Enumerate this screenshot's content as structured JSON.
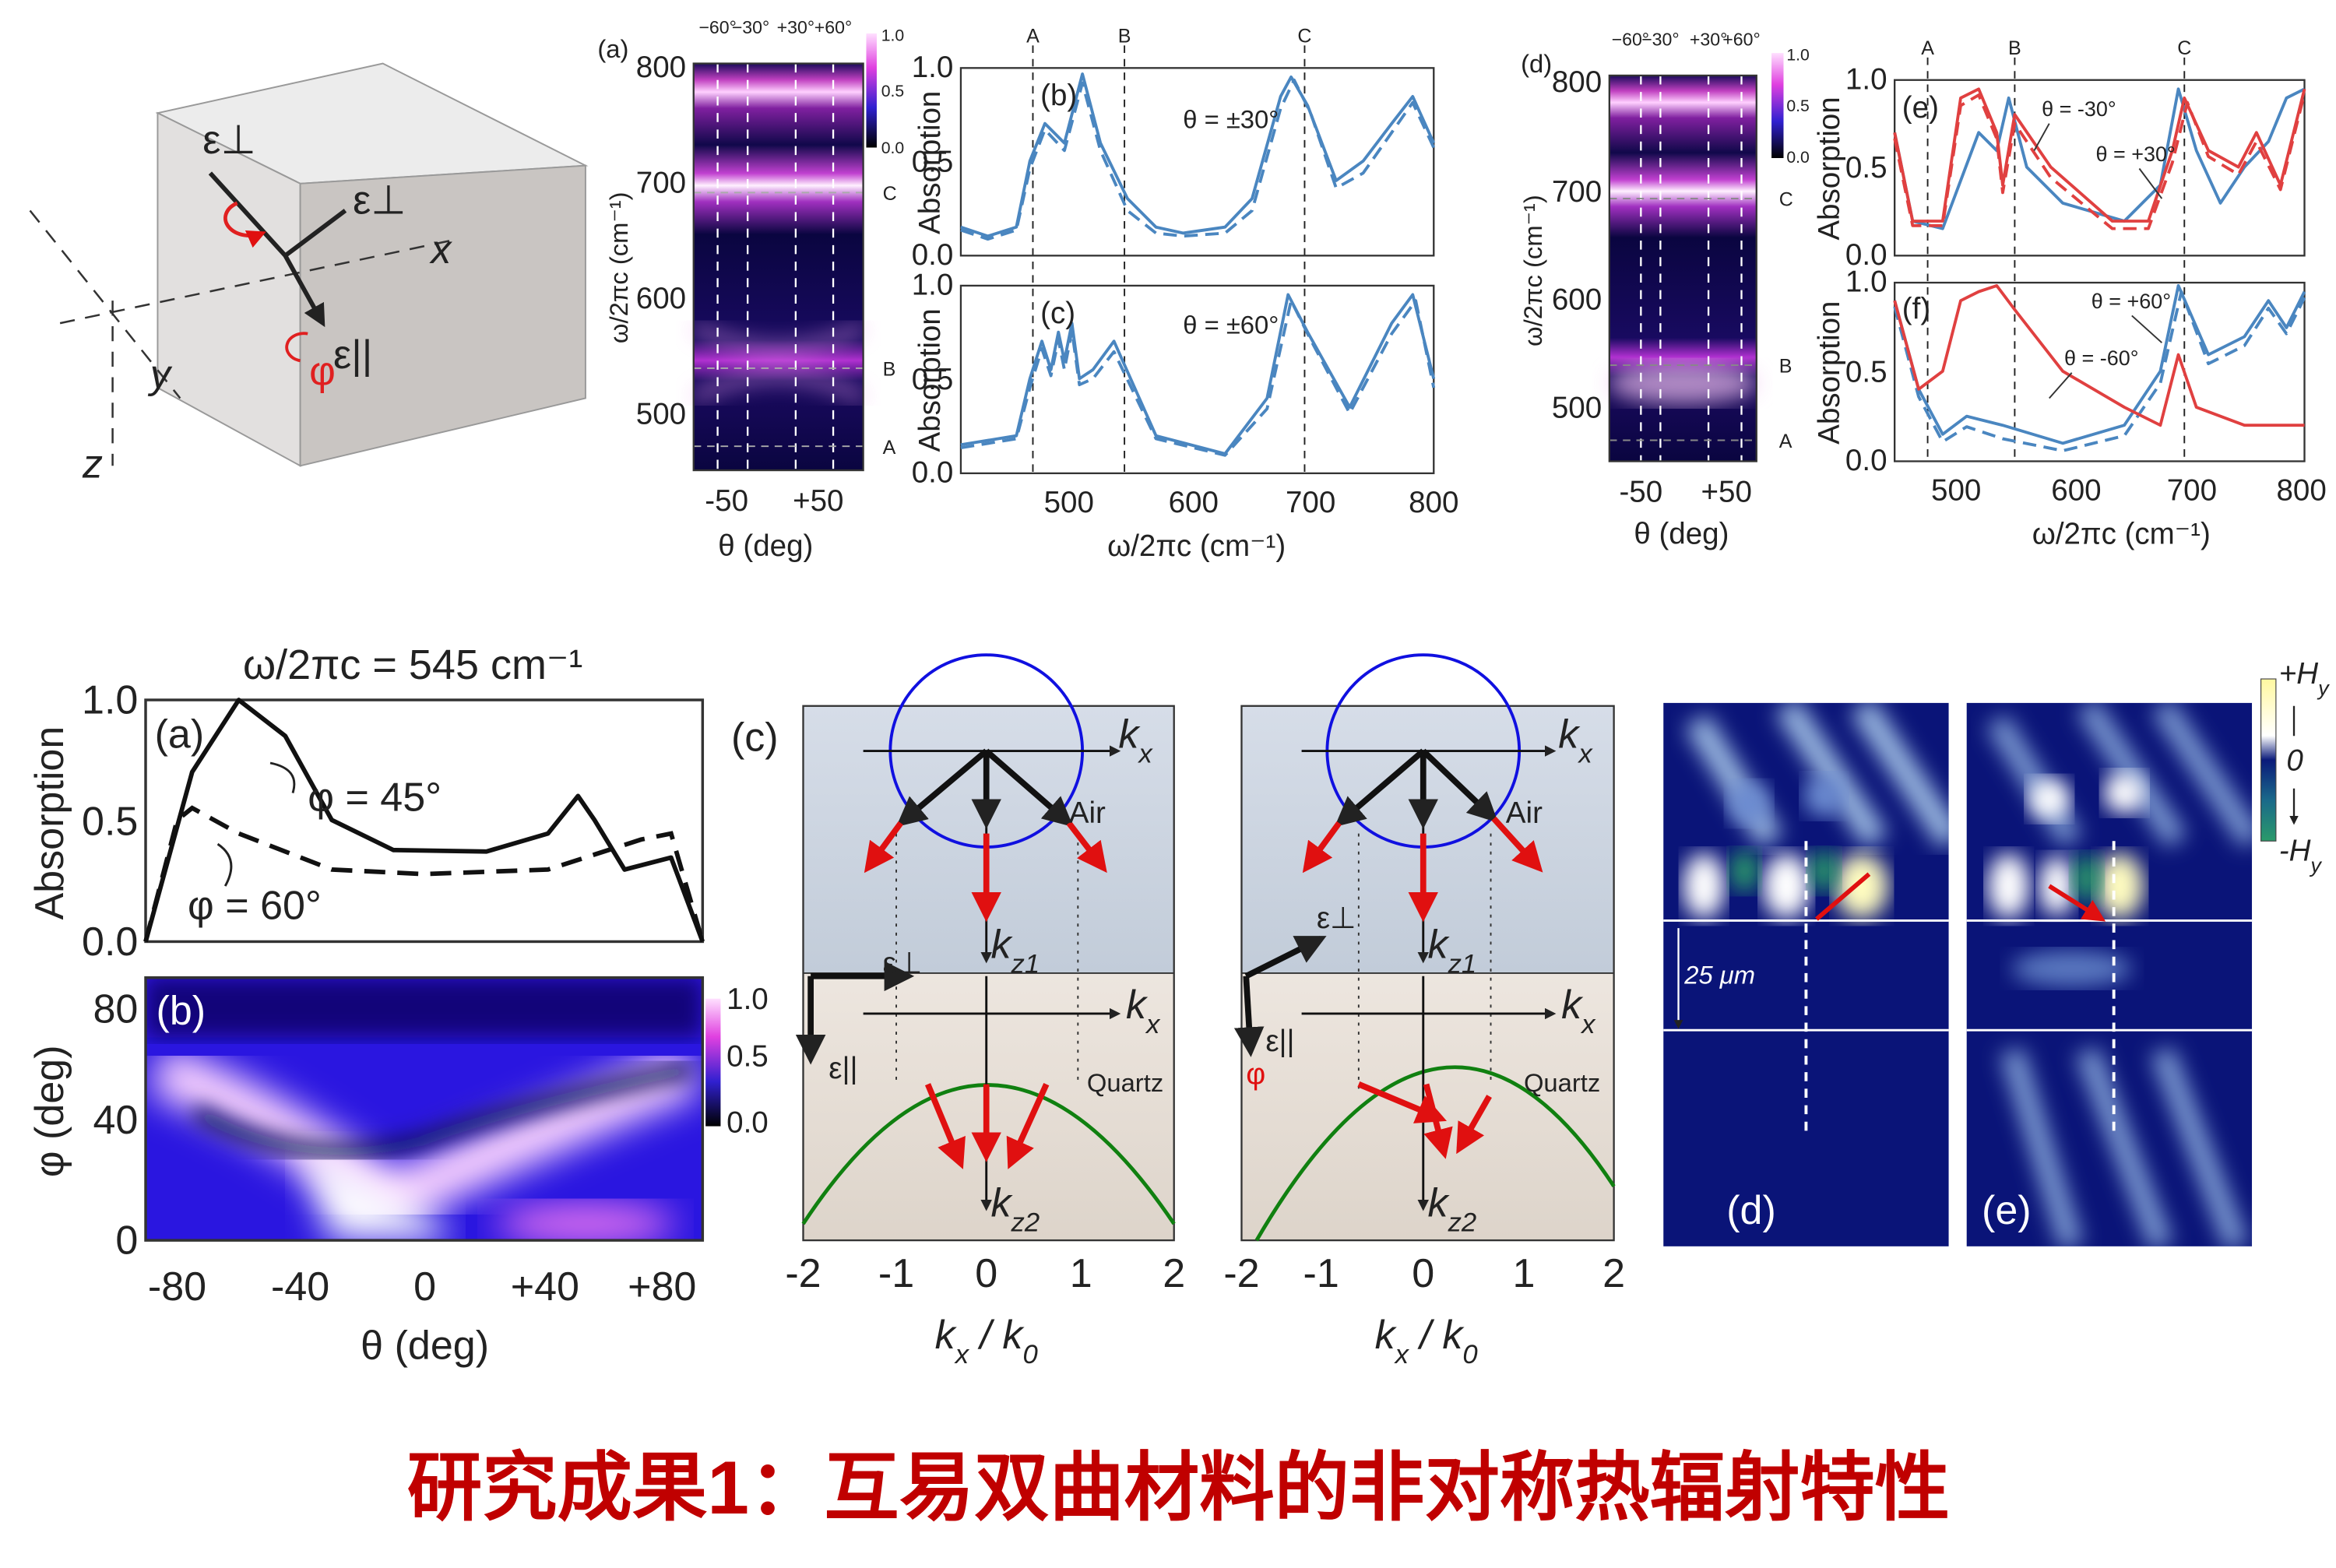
{
  "title": "研究成果1：互易双曲材料的非对称热辐射特性",
  "cube": {
    "e_perp": "ε⊥",
    "x": "x",
    "e_par": "ε||",
    "phi": "φ",
    "y": "y",
    "z": "z"
  },
  "fig1": {
    "label_a": "(a)",
    "label_b": "(b)",
    "label_c": "(c)",
    "angles": [
      "−60°",
      "−30°",
      "+30°",
      "+60°"
    ],
    "modes": [
      "A",
      "B",
      "C"
    ],
    "heat_yticks": [
      "800",
      "700",
      "600",
      "500"
    ],
    "heat_xticks": [
      "-50",
      "+50"
    ],
    "heat_ylabel": "ω/2πc (cm⁻¹)",
    "heat_xlabel": "θ (deg)",
    "cbar": [
      "1.0",
      "0.5",
      "0.0"
    ],
    "abs_ylabel": "Absorption",
    "abs_yticks": [
      "1.0",
      "0.5",
      "0.0"
    ],
    "abs_xticks": [
      "500",
      "600",
      "700",
      "800"
    ],
    "abs_xlabel": "ω/2πc (cm⁻¹)",
    "theta_b": "θ = ±30°",
    "theta_c": "θ = ±60°"
  },
  "fig2": {
    "label_d": "(d)",
    "label_e": "(e)",
    "label_f": "(f)",
    "theta_e1": "θ = -30°",
    "theta_e2": "θ = +30°",
    "theta_f1": "θ = +60°",
    "theta_f2": "θ = -60°"
  },
  "fig3": {
    "title": "ω/2πc = 545 cm⁻¹",
    "label_a": "(a)",
    "label_b": "(b)",
    "ylabel_a": "Absorption",
    "yticks_a": [
      "1.0",
      "0.5",
      "0.0"
    ],
    "phi45": "φ = 45°",
    "phi60": "φ = 60°",
    "yticks_b": [
      "80",
      "40",
      "0"
    ],
    "ylabel_b": "φ (deg)",
    "xticks": [
      "-80",
      "-40",
      "0",
      "+40",
      "+80"
    ],
    "xlabel": "θ (deg)",
    "cbar": [
      "1.0",
      "0.5",
      "0.0"
    ]
  },
  "fig4": {
    "label": "(c)",
    "k": "k",
    "x": "x",
    "z1": "z1",
    "z2": "z2",
    "air": "Air",
    "quartz": "Quartz",
    "e_perp": "ε⊥",
    "e_par": "ε||",
    "phi": "φ",
    "xticks": [
      "-2",
      "-1",
      "0",
      "1",
      "2"
    ],
    "xlabel": [
      "k",
      "x",
      " / k",
      "0"
    ]
  },
  "fig5": {
    "plus": "+H",
    "minus": "-H",
    "y": "y",
    "zero": "0",
    "scale": "25 μm",
    "label_d": "(d)",
    "label_e": "(e)"
  }
}
